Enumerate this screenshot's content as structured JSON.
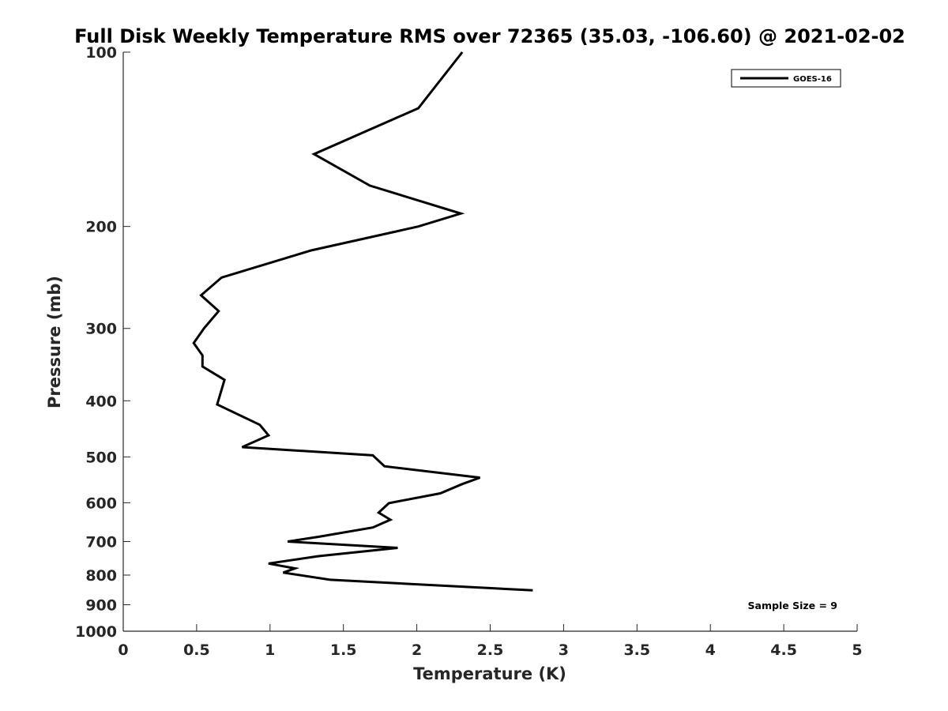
{
  "chart_data": {
    "type": "line",
    "title": "Full Disk Weekly Temperature RMS over 72365 (35.03, -106.60) @ 2021-02-02",
    "xlabel": "Temperature (K)",
    "ylabel": "Pressure (mb)",
    "xlim": [
      0,
      5
    ],
    "ylim": [
      100,
      1000
    ],
    "y_scale": "log",
    "y_reversed": true,
    "x_ticks": [
      0,
      0.5,
      1,
      1.5,
      2,
      2.5,
      3,
      3.5,
      4,
      4.5,
      5
    ],
    "x_tick_labels": [
      "0",
      "0.5",
      "1",
      "1.5",
      "2",
      "2.5",
      "3",
      "3.5",
      "4",
      "4.5",
      "5"
    ],
    "y_ticks": [
      100,
      200,
      300,
      400,
      500,
      600,
      700,
      800,
      900,
      1000
    ],
    "y_tick_labels": [
      "100",
      "200",
      "300",
      "400",
      "500",
      "600",
      "700",
      "800",
      "900",
      "1000"
    ],
    "grid": false,
    "legend": {
      "position": "top-right",
      "entries": [
        "GOES-16"
      ]
    },
    "annotations": [
      "Sample Size = 9"
    ],
    "series": [
      {
        "name": "GOES-16",
        "color": "#000000",
        "points": [
          [
            2.31,
            100
          ],
          [
            2.01,
            125
          ],
          [
            1.3,
            150
          ],
          [
            1.68,
            170
          ],
          [
            2.3,
            190
          ],
          [
            2.01,
            200
          ],
          [
            1.28,
            220
          ],
          [
            0.67,
            245
          ],
          [
            0.53,
            263
          ],
          [
            0.65,
            280
          ],
          [
            0.55,
            300
          ],
          [
            0.48,
            318
          ],
          [
            0.54,
            334
          ],
          [
            0.54,
            349
          ],
          [
            0.69,
            368
          ],
          [
            0.64,
            406
          ],
          [
            0.93,
            440
          ],
          [
            0.99,
            459
          ],
          [
            0.81,
            481
          ],
          [
            1.7,
            497
          ],
          [
            1.78,
            519
          ],
          [
            2.43,
            543
          ],
          [
            2.31,
            557
          ],
          [
            2.16,
            578
          ],
          [
            1.81,
            601
          ],
          [
            1.74,
            624
          ],
          [
            1.82,
            642
          ],
          [
            1.7,
            662
          ],
          [
            1.33,
            687
          ],
          [
            1.12,
            700
          ],
          [
            1.87,
            718
          ],
          [
            1.33,
            742
          ],
          [
            0.99,
            764
          ],
          [
            1.17,
            779
          ],
          [
            1.09,
            792
          ],
          [
            1.41,
            815
          ],
          [
            2.79,
            850
          ]
        ]
      }
    ]
  }
}
